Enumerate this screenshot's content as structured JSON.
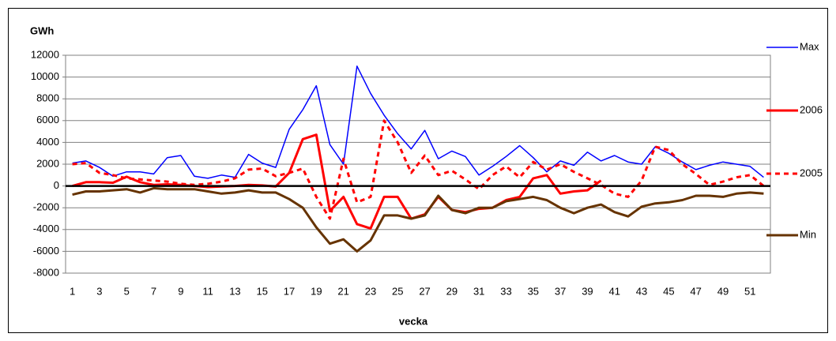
{
  "chart_data": {
    "type": "line",
    "title": "GWh",
    "x_label": "vecka",
    "categories": [
      "1",
      null,
      "3",
      null,
      "5",
      null,
      "7",
      null,
      "9",
      null,
      "11",
      null,
      "13",
      null,
      "15",
      null,
      "17",
      null,
      "19",
      null,
      "21",
      null,
      "23",
      null,
      "25",
      null,
      "27",
      null,
      "29",
      null,
      "31",
      null,
      "33",
      null,
      "35",
      null,
      "37",
      null,
      "39",
      null,
      "41",
      null,
      "43",
      null,
      "45",
      null,
      "47",
      null,
      "49",
      null,
      "51",
      null
    ],
    "ylim": [
      -8000,
      12000
    ],
    "yticks": [
      -8000,
      -6000,
      -4000,
      -2000,
      0,
      2000,
      4000,
      6000,
      8000,
      10000,
      12000
    ],
    "grid": true,
    "legend": "right",
    "series": [
      {
        "name": "Max",
        "color": "#0000ff",
        "dash": false,
        "width": 1.5,
        "values": [
          2100,
          2300,
          1700,
          900,
          1300,
          1300,
          1100,
          2600,
          2800,
          900,
          700,
          1000,
          800,
          2900,
          2100,
          1700,
          5200,
          7000,
          9200,
          3800,
          2000,
          11000,
          8500,
          6500,
          4800,
          3400,
          5100,
          2500,
          3200,
          2700,
          1000,
          1800,
          2700,
          3700,
          2600,
          1300,
          2300,
          1900,
          3100,
          2300,
          2800,
          2200,
          2000,
          3600,
          3000,
          2200,
          1500,
          1900,
          2200,
          2000,
          1800,
          800
        ]
      },
      {
        "name": "2006",
        "color": "#ff0000",
        "dash": false,
        "width": 3,
        "values": [
          0,
          350,
          350,
          300,
          850,
          350,
          100,
          150,
          100,
          0,
          -100,
          -50,
          0,
          100,
          50,
          -50,
          1200,
          4300,
          4700,
          -2300,
          -1000,
          -3500,
          -3900,
          -1000,
          -1000,
          -3000,
          -2600,
          -1000,
          -2200,
          -2400,
          -2100,
          -2000,
          -1300,
          -1000,
          700,
          1000,
          -700,
          -500,
          -400,
          500,
          null,
          null,
          null,
          null,
          null,
          null,
          null,
          null,
          null,
          null,
          null,
          null
        ]
      },
      {
        "name": "2005",
        "color": "#ff0000",
        "dash": true,
        "width": 3,
        "values": [
          2000,
          2100,
          1200,
          1000,
          700,
          600,
          500,
          400,
          200,
          100,
          200,
          400,
          700,
          1500,
          1600,
          900,
          1200,
          1600,
          -1000,
          -3000,
          2500,
          -1500,
          -1000,
          6000,
          4000,
          1200,
          2800,
          1000,
          1400,
          600,
          -300,
          1000,
          1800,
          800,
          2200,
          1500,
          2000,
          1300,
          700,
          100,
          -700,
          -1000,
          500,
          3600,
          3300,
          2000,
          1100,
          100,
          400,
          800,
          1000,
          0
        ]
      },
      {
        "name": "Min",
        "color": "#663300",
        "dash": false,
        "width": 3,
        "values": [
          -800,
          -500,
          -500,
          -400,
          -300,
          -600,
          -200,
          -300,
          -300,
          -300,
          -500,
          -700,
          -600,
          -400,
          -600,
          -600,
          -1200,
          -2000,
          -3800,
          -5300,
          -4900,
          -6000,
          -5000,
          -2700,
          -2700,
          -3000,
          -2700,
          -900,
          -2200,
          -2500,
          -2000,
          -2000,
          -1400,
          -1200,
          -1000,
          -1300,
          -2000,
          -2500,
          -2000,
          -1700,
          -2400,
          -2800,
          -1900,
          -1600,
          -1500,
          -1300,
          -900,
          -900,
          -1000,
          -700,
          -600,
          -700
        ]
      }
    ]
  }
}
